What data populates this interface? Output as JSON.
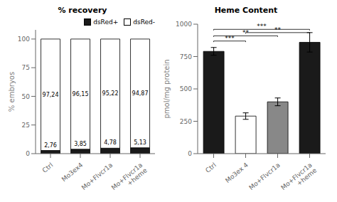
{
  "chart_data": [
    {
      "type": "bar",
      "stacked": true,
      "title": "% recovery",
      "y_label": "% embryos",
      "categories": [
        "Ctrl",
        "Mo3ex4",
        "Mo+Flvcr1a",
        "Mo+Flvcr1a\n+heme"
      ],
      "series": [
        {
          "name": "dsRed+",
          "color": "#1a1a1a",
          "values": [
            2.76,
            3.85,
            4.78,
            5.13
          ],
          "value_labels": [
            "2,76",
            "3,85",
            "4,78",
            "5,13"
          ]
        },
        {
          "name": "dsRed-",
          "color": "#ffffff",
          "values": [
            97.24,
            96.15,
            95.22,
            94.87
          ],
          "value_labels": [
            "97,24",
            "96,15",
            "95,22",
            "94,87"
          ]
        }
      ],
      "ylim": [
        0,
        108
      ],
      "yticks": [
        0,
        25,
        50,
        75,
        100
      ],
      "legend": "upper right",
      "data_labels": true
    },
    {
      "type": "bar",
      "title": "Heme Content",
      "y_label": "pmol/mg protein",
      "categories": [
        "Ctrl",
        "Mo3ex 4",
        "Mo+Flvcr1a",
        "Mo+Flvcr1a\n+heme"
      ],
      "values": [
        790,
        290,
        400,
        860
      ],
      "errors": [
        30,
        25,
        30,
        75
      ],
      "colors": [
        "#1a1a1a",
        "#ffffff",
        "#888888",
        "#1a1a1a"
      ],
      "ylim": [
        0,
        1000
      ],
      "yticks": [
        0,
        250,
        500,
        750,
        1000
      ],
      "annotations": [
        {
          "x1": 0,
          "x2": 1,
          "y": 870,
          "label": "***"
        },
        {
          "x1": 0,
          "x2": 2,
          "y": 910,
          "label": "**"
        },
        {
          "x1": 1,
          "x2": 3,
          "y": 935,
          "label": "**"
        },
        {
          "x1": 0,
          "x2": 3,
          "y": 960,
          "label": "***"
        }
      ]
    }
  ]
}
